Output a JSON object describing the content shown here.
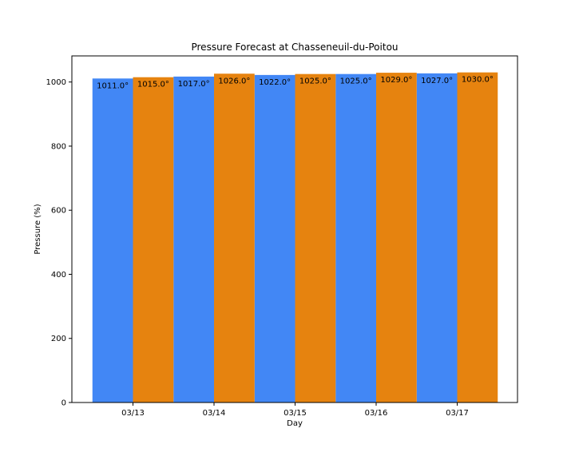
{
  "chart_data": {
    "type": "bar",
    "title": "Pressure Forecast at Chasseneuil-du-Poitou",
    "xlabel": "Day",
    "ylabel": "Pressure (%)",
    "categories": [
      "03/13",
      "03/14",
      "03/15",
      "03/16",
      "03/17"
    ],
    "series": [
      {
        "values": [
          1011.0,
          1017.0,
          1022.0,
          1025.0,
          1027.0
        ],
        "labels": [
          "1011.0°",
          "1017.0°",
          "1022.0°",
          "1025.0°",
          "1027.0°"
        ],
        "color": "#4287f5"
      },
      {
        "values": [
          1015.0,
          1026.0,
          1025.0,
          1029.0,
          1030.0
        ],
        "labels": [
          "1015.0°",
          "1026.0°",
          "1025.0°",
          "1029.0°",
          "1030.0°"
        ],
        "color": "#e6830f"
      }
    ],
    "ylim": [
      0,
      1081.5
    ],
    "yticks": [
      0,
      200,
      400,
      600,
      800,
      1000
    ],
    "grid": false,
    "legend": false
  }
}
